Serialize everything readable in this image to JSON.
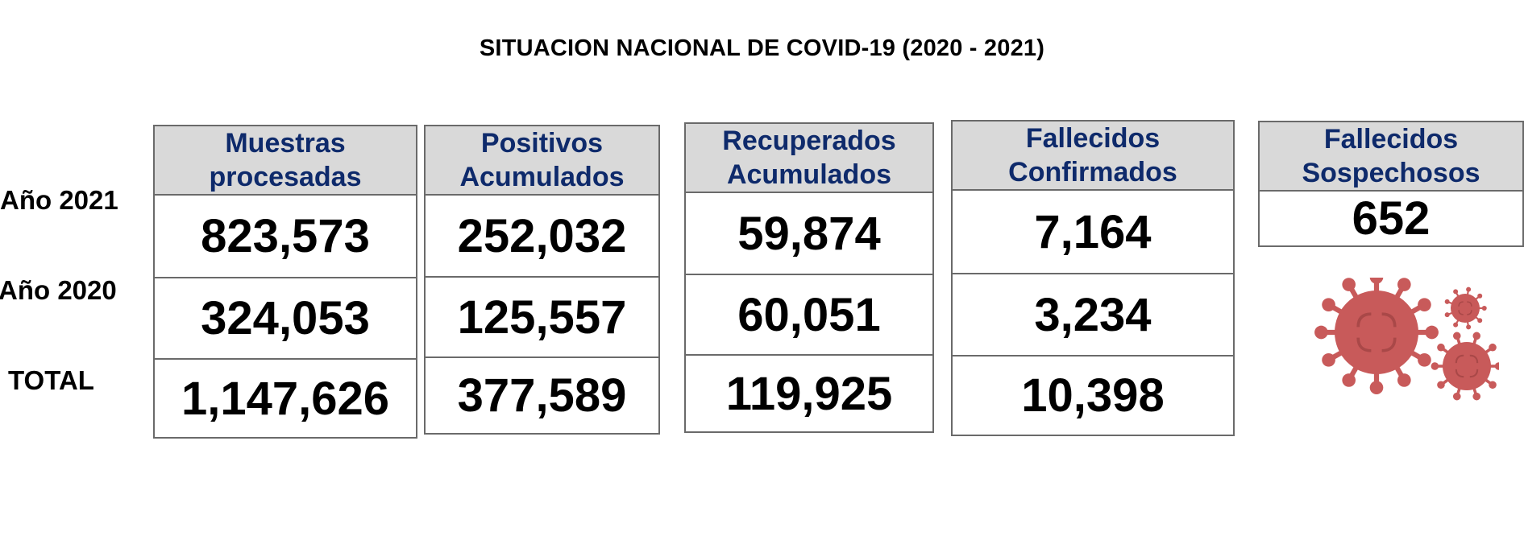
{
  "title": "SITUACION NACIONAL DE COVID-19 (2020 - 2021)",
  "row_labels": [
    "Año 2021",
    "Año 2020",
    "TOTAL"
  ],
  "columns": [
    {
      "head_line1": "Muestras",
      "head_line2": "procesadas",
      "values": [
        "823,573",
        "324,053",
        "1,147,626"
      ]
    },
    {
      "head_line1": "Positivos",
      "head_line2": "Acumulados",
      "values": [
        "252,032",
        "125,557",
        "377,589"
      ]
    },
    {
      "head_line1": "Recuperados",
      "head_line2": "Acumulados",
      "values": [
        "59,874",
        "60,051",
        "119,925"
      ]
    },
    {
      "head_line1": "Fallecidos",
      "head_line2": "Confirmados",
      "values": [
        "7,164",
        "3,234",
        "10,398"
      ]
    }
  ],
  "suspected": {
    "head_line1": "Fallecidos",
    "head_line2": "Sospechosos",
    "value": "652"
  },
  "colors": {
    "header_bg": "#d9d9d9",
    "header_text": "#0e2a6b",
    "virus": "#c85a5a"
  },
  "icons": [
    "virus-icon"
  ]
}
